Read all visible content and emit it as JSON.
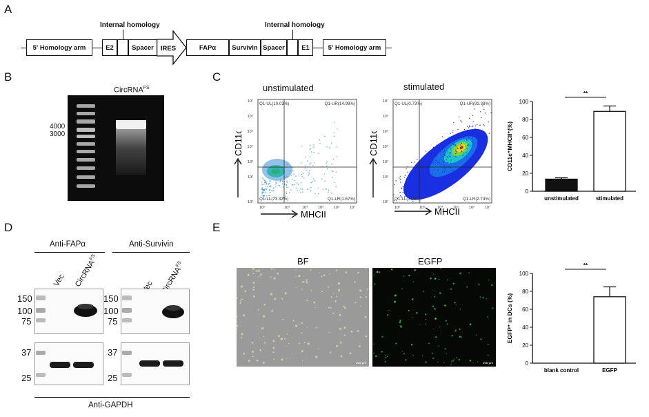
{
  "panels": {
    "a": "A",
    "b": "B",
    "c": "C",
    "d": "D",
    "e": "E"
  },
  "construct": {
    "internal_left": "Internal homology",
    "internal_right": "Internal homology",
    "left_arm": "5' Homology arm",
    "e2": "E2",
    "spacer1": "Spacer",
    "ires": "IRES",
    "fapa": "FAPα",
    "survivin": "Survivin",
    "spacer2": "Spacer",
    "e1": "E1",
    "right_arm": "5' Homology arm"
  },
  "gel": {
    "title": "CircRNA",
    "title_sup": "FS",
    "marker_4000": "4000",
    "marker_3000": "3000"
  },
  "flow": {
    "unstim_title": "unstimulated",
    "stim_title": "stimulated",
    "ylabel": "CD11c",
    "xlabel": "MHCII",
    "unstim_ul": "Q1-UL(10.03%)",
    "unstim_ur": "Q1-UR(14.98%)",
    "unstim_ll": "Q1-LL(73.32%)",
    "unstim_lr": "Q1-LR(1.67%)",
    "stim_ul": "Q1-UL(0.73%)",
    "stim_ur": "Q1-UR(93.38%)",
    "stim_ll": "Q1-LL(3.16%)",
    "stim_lr": "Q1-LR(2.74%)"
  },
  "chart_data": [
    {
      "type": "bar",
      "id": "C",
      "categories": [
        "unstimulated",
        "stimulated"
      ],
      "values": [
        13.5,
        89
      ],
      "errors": [
        1.5,
        6
      ],
      "ylabel": "CD11c⁺MHCII⁺(%)",
      "ylim": [
        0,
        100
      ],
      "yticks": [
        0,
        20,
        40,
        60,
        80,
        100
      ],
      "significance": "**"
    },
    {
      "type": "bar",
      "id": "E",
      "categories": [
        "blank control",
        "EGFP"
      ],
      "values": [
        0,
        74
      ],
      "errors": [
        0,
        11
      ],
      "ylabel": "EGFP⁺ in DCs (%)",
      "ylim": [
        0,
        100
      ],
      "yticks": [
        0,
        20,
        40,
        60,
        80,
        100
      ],
      "significance": "**"
    }
  ],
  "western": {
    "anti_fapa": "Anti-FAPα",
    "anti_survivin": "Anti-Survivin",
    "anti_gapdh": "Anti-GAPDH",
    "vec": "Vec",
    "circ": "CircRNA",
    "circ_sup": "FS",
    "m150": "150",
    "m100": "100",
    "m75": "75",
    "m37": "37",
    "m25": "25"
  },
  "micro": {
    "bf": "BF",
    "egfp": "EGFP",
    "scale": "100 μm"
  }
}
